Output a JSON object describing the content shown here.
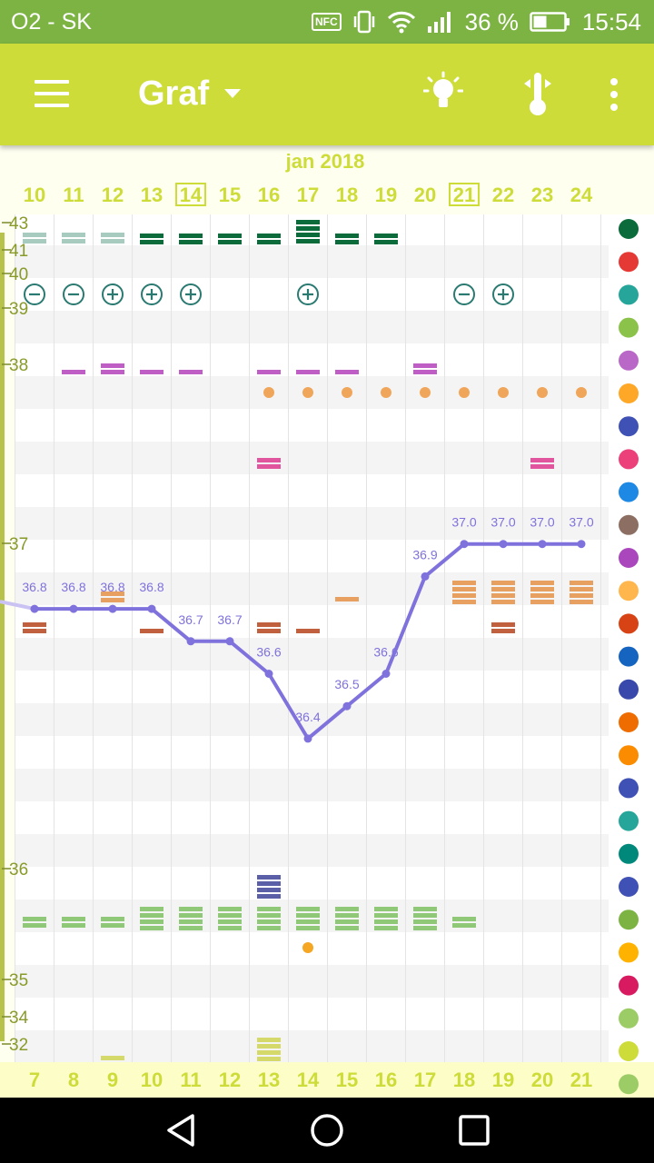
{
  "status_bar": {
    "carrier": "O2 - SK",
    "nfc_label": "NFC",
    "battery_percent": "36 %",
    "time": "15:54",
    "icons": [
      "nfc-icon",
      "vibrate-icon",
      "wifi-icon",
      "signal-icon",
      "battery-icon"
    ]
  },
  "toolbar": {
    "menu_icon": "menu-icon",
    "title": "Graf",
    "dropdown_icon": "dropdown-caret-icon",
    "actions": [
      "lightbulb-icon",
      "thermometer-icon",
      "more-vert-icon"
    ]
  },
  "chart": {
    "month_label": "jan 2018",
    "top_days": [
      "10",
      "11",
      "12",
      "13",
      "14",
      "15",
      "16",
      "17",
      "18",
      "19",
      "20",
      "21",
      "22",
      "23",
      "24"
    ],
    "boxed_days": [
      "14",
      "21"
    ],
    "bottom_days": [
      "7",
      "8",
      "9",
      "10",
      "11",
      "12",
      "13",
      "14",
      "15",
      "16",
      "17",
      "18",
      "19",
      "20",
      "21"
    ],
    "y_labels": [
      "43",
      "41",
      "40",
      "39",
      "38",
      "37",
      "36",
      "35",
      "34",
      "32"
    ],
    "temperatures": [
      36.8,
      36.8,
      36.8,
      36.8,
      36.7,
      36.7,
      36.6,
      36.4,
      36.5,
      36.6,
      36.9,
      37.0,
      37.0,
      37.0,
      37.0
    ],
    "temp_labels": [
      "36.8",
      "36.8",
      "36.8",
      "36.8",
      "36.7",
      "36.7",
      "36.6",
      "36.4",
      "36.5",
      "36.6",
      "36.9",
      "37.0",
      "37.0",
      "37.0",
      "37.0"
    ],
    "test_results": [
      "minus",
      "minus",
      "plus",
      "plus",
      "plus",
      "",
      "",
      "plus",
      "",
      "",
      "",
      "minus",
      "plus",
      "",
      ""
    ],
    "colors": {
      "line": "#7f72dc",
      "accent": "#cddc39",
      "dark_green": "#0b6b3a",
      "purple": "#bf5fc6",
      "orange_dot": "#f0a65a",
      "pink": "#e0559d",
      "peach": "#e8a060",
      "brick": "#c0603e",
      "navy": "#5a5fa8",
      "light_green": "#8fc876",
      "lime": "#d4d96a",
      "teal": "#2a7a72"
    },
    "side_icons": [
      "flower-icon",
      "blood-drop-icon",
      "splash-icon",
      "rings-icon",
      "heart-icon",
      "pill-bottle-icon",
      "smiley-icon",
      "pain-icon",
      "document-icon",
      "pregnancy-icon",
      "flower-check-icon",
      "nose-icon",
      "drop-icon",
      "exercise-icon",
      "mood-icon",
      "headache-icon",
      "body-icon",
      "sleep-icon",
      "cake-icon",
      "couple-icon",
      "balloon-icon",
      "medical-kit-icon",
      "flower-alert-icon",
      "woman-icon",
      "pizza-icon",
      "sofa-icon",
      "cycle-icon"
    ]
  },
  "nav_bar": {
    "buttons": [
      "back-icon",
      "home-icon",
      "recents-icon"
    ]
  }
}
